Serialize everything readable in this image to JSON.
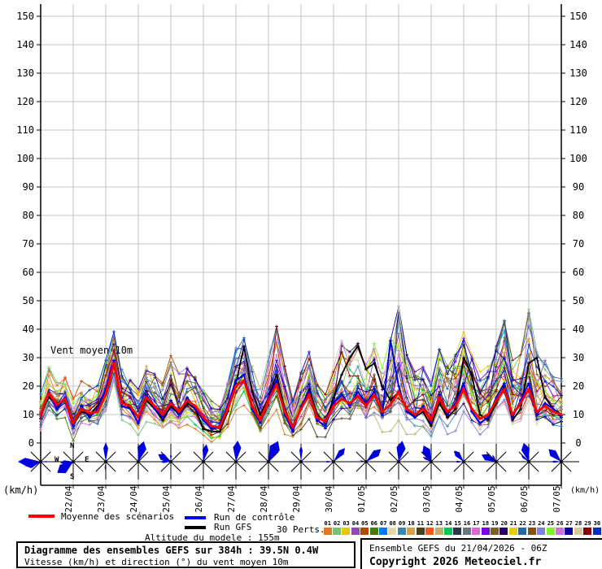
{
  "axes": {
    "unit_left": "(km/h)",
    "unit_right": "(km/h)",
    "y_ticks": [
      0,
      10,
      20,
      30,
      40,
      50,
      60,
      70,
      80,
      90,
      100,
      110,
      120,
      130,
      140,
      150
    ],
    "x_dates": [
      "22/04",
      "23/04",
      "24/04",
      "25/04",
      "26/04",
      "27/04",
      "28/04",
      "29/04",
      "30/04",
      "01/05",
      "02/05",
      "03/05",
      "04/05",
      "05/05",
      "06/05",
      "07/05"
    ]
  },
  "chart_data": {
    "type": "line",
    "title": "Diagramme des ensembles GEFS sur 384h : 39.5N 0.4W",
    "subtitle": "Vitesse (km/h) et direction (°) du vent moyen 10m",
    "annotation": "Vent moyen 10m",
    "ylabel": "(km/h)",
    "ylim": [
      0,
      155
    ],
    "grid": true,
    "x_hours_step": 6,
    "x_points": 65,
    "x_tick_labels": [
      "22/04",
      "23/04",
      "24/04",
      "25/04",
      "26/04",
      "27/04",
      "28/04",
      "29/04",
      "30/04",
      "01/05",
      "02/05",
      "03/05",
      "04/05",
      "05/05",
      "06/05",
      "07/05"
    ],
    "series": [
      {
        "name": "Moyenne des scénarios",
        "color": "#ff0000",
        "values": [
          10,
          17.5,
          13.5,
          15.5,
          7,
          12,
          10.5,
          11,
          17,
          28,
          14,
          13,
          9,
          16,
          13,
          10,
          14,
          11,
          15,
          13,
          9,
          6,
          5.5,
          12,
          20,
          22,
          13,
          8,
          15,
          20.5,
          11,
          5.5,
          12,
          17,
          9,
          7.5,
          13,
          15.5,
          14,
          16.5,
          13,
          17,
          11,
          13.5,
          18,
          12,
          10,
          12,
          8,
          16,
          11,
          13,
          19,
          12,
          8.5,
          10,
          15,
          19,
          10,
          14,
          19,
          11,
          13,
          11,
          10
        ]
      },
      {
        "name": "Run de contrôle",
        "color": "#0000e8",
        "values": [
          10,
          18,
          12,
          16,
          6,
          13,
          9,
          12,
          19,
          29,
          13,
          12,
          7,
          17,
          12,
          9,
          15,
          10,
          16,
          12,
          8,
          5,
          6,
          13,
          22,
          24,
          12,
          7,
          16,
          22,
          10,
          4,
          13,
          18,
          8,
          6,
          14,
          17,
          13,
          18,
          14,
          18,
          10,
          36,
          20,
          11,
          9,
          13,
          7,
          17,
          10,
          14,
          21,
          11,
          7,
          9,
          16,
          21,
          9,
          15,
          21,
          10,
          14,
          12,
          9
        ]
      },
      {
        "name": "Run GFS",
        "color": "#000000",
        "values": [
          10,
          16,
          14,
          15,
          7,
          11,
          10,
          13,
          18,
          27,
          15,
          12,
          9,
          15,
          12,
          8,
          13,
          10,
          14,
          12,
          5,
          4,
          4,
          11,
          21,
          34,
          18,
          10,
          16,
          24,
          12,
          5,
          12,
          19,
          10,
          7,
          16,
          24,
          30,
          34,
          26,
          28,
          20,
          15,
          18,
          12,
          9,
          11,
          6,
          14,
          9,
          12,
          30,
          24,
          10,
          8,
          14,
          20,
          8,
          12,
          28,
          30,
          16,
          12,
          10
        ]
      }
    ],
    "ensemble_envelope": {
      "min": [
        3,
        10,
        7,
        9,
        1,
        5,
        4,
        4,
        9,
        18,
        7,
        6,
        2,
        8,
        6,
        3,
        6,
        4,
        7,
        6,
        3,
        1,
        1,
        4,
        11,
        13,
        6,
        2,
        7,
        12,
        4,
        1,
        4,
        9,
        2,
        1,
        5,
        7,
        6,
        8,
        5,
        8,
        4,
        5,
        9,
        4,
        3,
        4,
        1,
        7,
        3,
        5,
        10,
        4,
        1,
        2,
        6,
        9,
        3,
        5,
        9,
        4,
        5,
        3,
        3
      ],
      "max": [
        18,
        26,
        22,
        24,
        16,
        21,
        19,
        20,
        30,
        41,
        26,
        22,
        18,
        26,
        24,
        20,
        32,
        24,
        26,
        24,
        18,
        14,
        13,
        22,
        33,
        36,
        26,
        18,
        30,
        40,
        26,
        14,
        24,
        31,
        20,
        16,
        26,
        35,
        31,
        34,
        30,
        34,
        26,
        36,
        47,
        30,
        24,
        26,
        20,
        32,
        26,
        30,
        38,
        30,
        24,
        26,
        33,
        42,
        28,
        30,
        46,
        31,
        28,
        26,
        24
      ]
    },
    "perturbations": {
      "count": 30,
      "labels": [
        "01",
        "02",
        "03",
        "04",
        "05",
        "06",
        "07",
        "08",
        "09",
        "10",
        "11",
        "12",
        "13",
        "14",
        "15",
        "16",
        "17",
        "18",
        "19",
        "20",
        "21",
        "22",
        "23",
        "24",
        "25",
        "26",
        "27",
        "28",
        "29",
        "30"
      ],
      "colors": [
        "#e07820",
        "#78c078",
        "#e8c800",
        "#9048b0",
        "#b04800",
        "#487800",
        "#0078f8",
        "#e0d8a8",
        "#3888b0",
        "#d8a048",
        "#484018",
        "#f85818",
        "#c0b070",
        "#00c850",
        "#283848",
        "#687880",
        "#d868d8",
        "#7800e8",
        "#786028",
        "#280068",
        "#e0d000",
        "#2868a0",
        "#885010",
        "#8080e0",
        "#80f030",
        "#d070d0",
        "#1000a0",
        "#d8c8a0",
        "#880000",
        "#0030c0"
      ]
    },
    "wind_roses": {
      "compass": {
        "n": "N",
        "e": "E",
        "s": "S",
        "w": "W",
        "rose_index": 1
      },
      "petal_color": "#0000dd",
      "list": [
        {
          "petals": [
            [
              270,
              28,
              14
            ],
            [
              255,
              20,
              20
            ],
            [
              90,
              10,
              6
            ]
          ]
        },
        {
          "petals": [
            [
              235,
              24,
              22
            ],
            [
              265,
              16,
              14
            ]
          ]
        },
        {
          "petals": [
            [
              0,
              24,
              10
            ],
            [
              185,
              10,
              6
            ]
          ]
        },
        {
          "petals": [
            [
              15,
              26,
              18
            ]
          ]
        },
        {
          "petals": [
            [
              300,
              18,
              20
            ],
            [
              270,
              13,
              10
            ],
            [
              0,
              10,
              8
            ]
          ]
        },
        {
          "petals": [
            [
              10,
              22,
              14
            ]
          ]
        },
        {
          "petals": [
            [
              5,
              26,
              16
            ]
          ]
        },
        {
          "petals": [
            [
              25,
              28,
              20
            ]
          ]
        },
        {
          "petals": [
            [
              0,
              20,
              8
            ],
            [
              90,
              7,
              6
            ],
            [
              270,
              7,
              6
            ]
          ]
        },
        {
          "petals": [
            [
              40,
              22,
              14
            ],
            [
              270,
              11,
              7
            ]
          ]
        },
        {
          "petals": [
            [
              50,
              24,
              16
            ],
            [
              280,
              8,
              6
            ]
          ]
        },
        {
          "petals": [
            [
              10,
              26,
              18
            ],
            [
              90,
              6,
              5
            ]
          ]
        },
        {
          "petals": [
            [
              335,
              22,
              20
            ],
            [
              300,
              12,
              10
            ]
          ]
        },
        {
          "petals": [
            [
              320,
              18,
              16
            ],
            [
              270,
              11,
              8
            ]
          ]
        },
        {
          "petals": [
            [
              295,
              20,
              18
            ],
            [
              330,
              10,
              8
            ]
          ]
        },
        {
          "petals": [
            [
              345,
              24,
              18
            ],
            [
              310,
              12,
              10
            ]
          ]
        },
        {
          "petals": [
            [
              315,
              22,
              18
            ],
            [
              270,
              13,
              8
            ]
          ]
        }
      ]
    }
  },
  "legend": {
    "mean_label": "Moyenne des scénarios",
    "control_label": "Run de contrôle",
    "gfs_label": "Run GFS",
    "perts_label": "30 Perts.",
    "altitude": "Altitude du modele : 155m"
  },
  "footer": {
    "box_title": "Diagramme des ensembles GEFS sur 384h : 39.5N 0.4W",
    "box_subtitle": "Vitesse (km/h) et direction (°) du vent moyen 10m",
    "run_info": "Ensemble GEFS du 21/04/2026 - 06Z",
    "copyright": "Copyright 2026 Meteociel.fr"
  },
  "colors": {
    "mean": "#ff0000",
    "control": "#0000e8",
    "gfs": "#000000",
    "grid": "#c4c4c4",
    "axis": "#000000",
    "rose_blue": "#0000dd"
  }
}
